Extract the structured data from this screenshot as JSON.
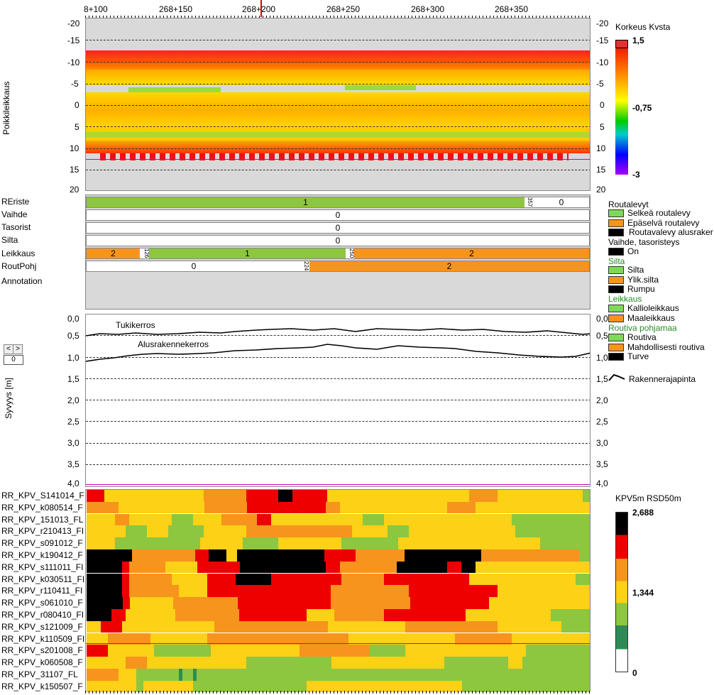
{
  "top_axis": {
    "labels": [
      "8+100",
      "268+150",
      "268+200",
      "268+250",
      "268+300",
      "268+350"
    ]
  },
  "cross_section": {
    "ylabel": "Poikkileikkaus",
    "left_ticks": [
      "-20",
      "-15",
      "-10",
      "-5",
      "0",
      "5",
      "10",
      "15",
      "20"
    ],
    "right_ticks": [
      "-20",
      "-15",
      "-10",
      "-5",
      "0",
      "5",
      "10",
      "15",
      "20"
    ],
    "legend_title": "Korkeus Kvsta",
    "legend_values": [
      "1,5",
      "-0,75",
      "-3"
    ]
  },
  "tracks": {
    "labels": [
      "REriste",
      "Vaihde",
      "Tasorist",
      "Silta",
      "Leikkaus",
      "RoutPohj",
      "Annotation"
    ],
    "rows": [
      {
        "segments": [
          {
            "text": "1",
            "color": "#8dc63f"
          },
          {
            "marker": "357"
          },
          {
            "text": "0",
            "color": "#ffffff"
          }
        ]
      },
      {
        "segments": [
          {
            "text": "0",
            "color": "#ffffff"
          }
        ]
      },
      {
        "segments": [
          {
            "text": "0",
            "color": "#ffffff"
          }
        ]
      },
      {
        "segments": [
          {
            "text": "0",
            "color": "#ffffff"
          }
        ]
      },
      {
        "segments": [
          {
            "text": "2",
            "color": "#f7941d"
          },
          {
            "marker": "126"
          },
          {
            "text": "1",
            "color": "#8dc63f"
          },
          {
            "marker": "250"
          },
          {
            "text": "2",
            "color": "#f7941d"
          }
        ]
      },
      {
        "segments": [
          {
            "text": "0",
            "color": "#ffffff"
          },
          {
            "marker": "224"
          },
          {
            "text": "2",
            "color": "#f7941d"
          }
        ]
      }
    ]
  },
  "legend": {
    "title1": "Routalevyt",
    "items1": [
      {
        "label": "Selkeä routalevy",
        "color": "#7ed957"
      },
      {
        "label": "Epäselvä routalevy",
        "color": "#f7941d"
      },
      {
        "label": "Routavalevy alusraker",
        "color": "#000000"
      }
    ],
    "title2": "Vaihde, tasoristeys",
    "items2": [
      {
        "label": "On",
        "color": "#000000"
      }
    ],
    "title3": "Silta",
    "items3": [
      {
        "label": "Silta",
        "color": "#7ed957"
      },
      {
        "label": "Ylik.silta",
        "color": "#f7941d"
      },
      {
        "label": "Rumpu",
        "color": "#000000"
      }
    ],
    "title4": "Leikkaus",
    "items4": [
      {
        "label": "Kallioleikkaus",
        "color": "#7ed957"
      },
      {
        "label": "Maaleikkaus",
        "color": "#f7941d"
      }
    ],
    "title5": "Routiva pohjamaa",
    "items5": [
      {
        "label": "Routiva",
        "color": "#7ed957"
      },
      {
        "label": "Mahdollisesti routiva",
        "color": "#f7941d"
      },
      {
        "label": "Turve",
        "color": "#000000"
      }
    ],
    "layer_line": "Rakennerajapinta"
  },
  "depth": {
    "ylabel": "Syvyys [m]",
    "ticks": [
      "0,0",
      "0,5",
      "1,0",
      "1,5",
      "2,0",
      "2,5",
      "3,0",
      "3,5",
      "4,0"
    ],
    "line1_label": "Tukikerros",
    "line2_label": "Alusrakennekerros",
    "nav_prev": "<",
    "nav_next": ">",
    "nav_value": "0"
  },
  "heatmap": {
    "legend_title": "KPV5m RSD50m",
    "legend_values": [
      "2,688",
      "1,344",
      "0"
    ],
    "rows": [
      "RR_KPV_S141014_F",
      "RR_KPV_k080514_F",
      "RR_KPV_151013_FL",
      "RR_KPV_r210413_FI",
      "RR_KPV_s091012_F",
      "RR_KPV_k190412_F",
      "RR_KPV_s111011_FI",
      "RR_KPV_k030511_FI",
      "RR_KPV_r110411_FI",
      "RR_KPV_s061010_F",
      "RR_KPV_r080410_FI",
      "RR_KPV_s121009_F",
      "RR_KPV_k110509_FI",
      "RR_KPV_s201008_F",
      "RR_KPV_k060508_F",
      "RR_KPV_31107_FL",
      "RR_KPV_k150507_F"
    ]
  }
}
